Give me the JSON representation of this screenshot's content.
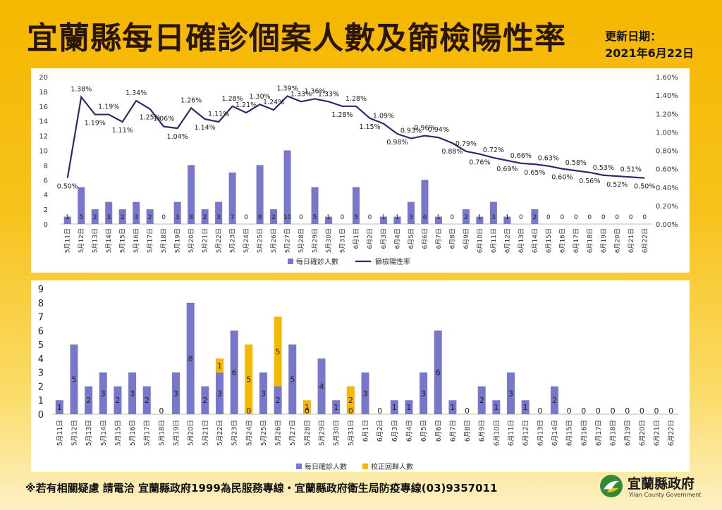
{
  "header": {
    "title": "宜蘭縣每日確診個案人數及篩檢陽性率",
    "updated_label": "更新日期：",
    "updated_date": "2021年6月22日"
  },
  "footer": {
    "hotline_text": "※若有相關疑慮 請電洽  宜蘭縣政府1999為民服務專線・宜蘭縣政府衛生局防疫專線(03)9357011",
    "logo_name": "宜蘭縣政府",
    "logo_en": "Yilan County Government"
  },
  "colors": {
    "bar": "#7777cc",
    "line": "#2b2b6b",
    "correction": "#f5b800",
    "title": "#2a1607"
  },
  "chart_data": [
    {
      "type": "bar",
      "combo": "bar+line",
      "categories": [
        "5月11日",
        "5月12日",
        "5月13日",
        "5月14日",
        "5月15日",
        "5月16日",
        "5月17日",
        "5月18日",
        "5月19日",
        "5月20日",
        "5月21日",
        "5月22日",
        "5月23日",
        "5月24日",
        "5月25日",
        "5月26日",
        "5月27日",
        "5月28日",
        "5月29日",
        "5月30日",
        "5月31日",
        "6月1日",
        "6月2日",
        "6月3日",
        "6月4日",
        "6月5日",
        "6月6日",
        "6月7日",
        "6月8日",
        "6月9日",
        "6月10日",
        "6月11日",
        "6月12日",
        "6月13日",
        "6月14日",
        "6月15日",
        "6月16日",
        "6月17日",
        "6月18日",
        "6月19日",
        "6月20日",
        "6月21日",
        "6月22日"
      ],
      "series": [
        {
          "name": "每日確診人數",
          "kind": "bar",
          "axis": "left",
          "values": [
            1,
            5,
            2,
            3,
            2,
            3,
            2,
            0,
            3,
            8,
            2,
            3,
            7,
            0,
            8,
            2,
            10,
            0,
            5,
            1,
            0,
            5,
            0,
            1,
            1,
            3,
            6,
            1,
            0,
            2,
            1,
            3,
            1,
            0,
            2,
            0,
            0,
            0,
            0,
            0,
            0,
            0,
            0
          ]
        },
        {
          "name": "篩檢陽性率",
          "kind": "line",
          "axis": "right",
          "values": [
            0.5,
            1.38,
            1.19,
            1.19,
            1.11,
            1.34,
            1.25,
            1.06,
            1.04,
            1.26,
            1.14,
            1.11,
            1.28,
            1.21,
            1.3,
            1.24,
            1.39,
            1.33,
            1.36,
            1.33,
            1.28,
            1.28,
            1.15,
            1.09,
            0.98,
            0.93,
            0.96,
            0.94,
            0.88,
            0.79,
            0.76,
            0.72,
            0.69,
            0.66,
            0.65,
            0.63,
            0.6,
            0.58,
            0.56,
            0.53,
            0.52,
            0.51,
            0.5
          ],
          "labels": [
            "0.50%",
            "1.38%",
            "1.19%",
            "1.19%",
            "1.11%",
            "1.34%",
            "1.25%",
            "1.06%",
            "1.04%",
            "1.26%",
            "1.14%",
            "1.11%",
            "1.28%",
            "1.21%",
            "1.30%",
            "1.24%",
            "1.39%",
            "1.33%",
            "1.36%",
            "1.33%",
            "1.28%",
            "1.28%",
            "1.15%",
            "1.09%",
            "0.98%",
            "0.93%",
            "0.96%",
            "0.94%",
            "0.88%",
            "0.79%",
            "0.76%",
            "0.72%",
            "0.69%",
            "0.66%",
            "0.65%",
            "0.63%",
            "0.60%",
            "0.58%",
            "0.56%",
            "0.53%",
            "0.52%",
            "0.51%",
            "0.50%"
          ]
        }
      ],
      "ylim_left": [
        0,
        20
      ],
      "yticks_left": [
        "0",
        "2",
        "4",
        "6",
        "8",
        "10",
        "12",
        "14",
        "16",
        "18",
        "20"
      ],
      "ylim_right": [
        0,
        1.6
      ],
      "yticks_right": [
        "0.00%",
        "0.20%",
        "0.40%",
        "0.60%",
        "0.80%",
        "1.00%",
        "1.20%",
        "1.40%",
        "1.60%"
      ],
      "legend_position": "bottom",
      "grid": false
    },
    {
      "type": "bar",
      "stacked": true,
      "categories": [
        "5月11日",
        "5月12日",
        "5月13日",
        "5月14日",
        "5月15日",
        "5月16日",
        "5月17日",
        "5月18日",
        "5月19日",
        "5月20日",
        "5月21日",
        "5月22日",
        "5月23日",
        "5月24日",
        "5月25日",
        "5月26日",
        "5月27日",
        "5月28日",
        "5月29日",
        "5月30日",
        "5月31日",
        "6月1日",
        "6月2日",
        "6月3日",
        "6月4日",
        "6月5日",
        "6月6日",
        "6月7日",
        "6月8日",
        "6月9日",
        "6月10日",
        "6月11日",
        "6月12日",
        "6月13日",
        "6月14日",
        "6月15日",
        "6月16日",
        "6月17日",
        "6月18日",
        "6月19日",
        "6月20日",
        "6月21日",
        "6月22日"
      ],
      "series": [
        {
          "name": "每日確診人數",
          "values": [
            1,
            5,
            2,
            3,
            2,
            3,
            2,
            0,
            3,
            8,
            2,
            3,
            6,
            0,
            3,
            2,
            5,
            0,
            4,
            1,
            0,
            3,
            0,
            1,
            1,
            3,
            6,
            1,
            0,
            2,
            1,
            3,
            1,
            0,
            2,
            0,
            0,
            0,
            0,
            0,
            0,
            0,
            0
          ]
        },
        {
          "name": "校正回歸人數",
          "values": [
            0,
            0,
            0,
            0,
            0,
            0,
            0,
            0,
            0,
            0,
            0,
            1,
            0,
            5,
            0,
            5,
            0,
            1,
            0,
            0,
            2,
            0,
            0,
            0,
            0,
            0,
            0,
            0,
            0,
            0,
            0,
            0,
            0,
            0,
            0,
            0,
            0,
            0,
            0,
            0,
            0,
            0,
            0
          ]
        }
      ],
      "ylim": [
        0,
        9
      ],
      "yticks": [
        "0",
        "1",
        "2",
        "3",
        "4",
        "5",
        "6",
        "7",
        "8",
        "9"
      ],
      "legend_position": "bottom",
      "grid": false
    }
  ]
}
